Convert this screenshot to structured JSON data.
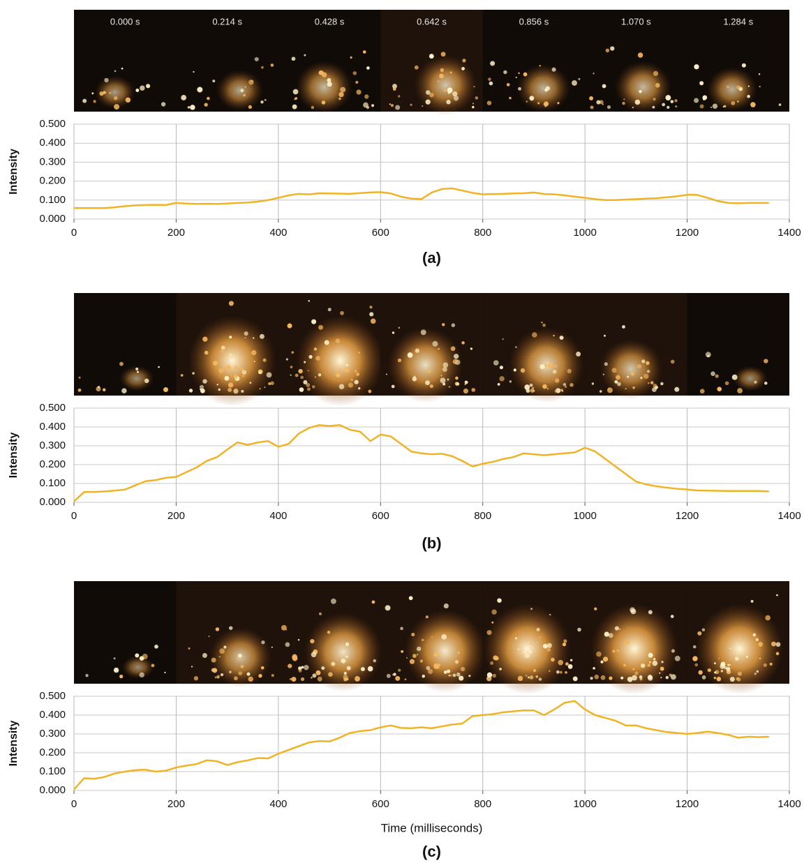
{
  "chart_data": [
    {
      "type": "line",
      "panel_label": "(a)",
      "ylabel": "Intensity",
      "frame_labels": [
        "0.000 s",
        "0.214 s",
        "0.428 s",
        "0.642 s",
        "0.856 s",
        "1.070 s",
        "1.284 s"
      ],
      "xlim": [
        0,
        1400
      ],
      "xticks": [
        0,
        200,
        400,
        600,
        800,
        1000,
        1200,
        1400
      ],
      "ylim": [
        0,
        0.5
      ],
      "yticks": [
        {
          "value": 0,
          "label": "0.000"
        },
        {
          "value": 0.1,
          "label": "0.100"
        },
        {
          "value": 0.2,
          "label": "0.200"
        },
        {
          "value": 0.3,
          "label": "0.300"
        },
        {
          "value": 0.4,
          "label": "0.400"
        },
        {
          "value": 0.5,
          "label": "0.500"
        }
      ],
      "grid": true,
      "x": [
        0,
        20,
        40,
        60,
        80,
        100,
        120,
        140,
        160,
        180,
        200,
        220,
        240,
        260,
        280,
        300,
        320,
        340,
        360,
        380,
        400,
        420,
        440,
        460,
        480,
        500,
        520,
        540,
        560,
        580,
        600,
        620,
        640,
        660,
        680,
        700,
        720,
        740,
        760,
        780,
        800,
        820,
        840,
        860,
        880,
        900,
        920,
        940,
        960,
        980,
        1000,
        1020,
        1040,
        1060,
        1080,
        1100,
        1120,
        1140,
        1160,
        1180,
        1200,
        1220,
        1240,
        1260,
        1280,
        1300,
        1320,
        1340,
        1360
      ],
      "series": [
        {
          "color": "#f0b323",
          "values": [
            0.058,
            0.058,
            0.058,
            0.058,
            0.062,
            0.068,
            0.072,
            0.074,
            0.075,
            0.074,
            0.085,
            0.082,
            0.08,
            0.081,
            0.08,
            0.082,
            0.085,
            0.087,
            0.092,
            0.1,
            0.112,
            0.125,
            0.133,
            0.13,
            0.136,
            0.135,
            0.134,
            0.133,
            0.137,
            0.14,
            0.142,
            0.135,
            0.118,
            0.108,
            0.105,
            0.14,
            0.158,
            0.162,
            0.15,
            0.138,
            0.13,
            0.132,
            0.133,
            0.135,
            0.136,
            0.14,
            0.132,
            0.13,
            0.125,
            0.118,
            0.112,
            0.105,
            0.1,
            0.1,
            0.103,
            0.105,
            0.108,
            0.11,
            0.115,
            0.12,
            0.128,
            0.127,
            0.112,
            0.095,
            0.085,
            0.083,
            0.085,
            0.085,
            0.085
          ]
        }
      ]
    },
    {
      "type": "line",
      "panel_label": "(b)",
      "ylabel": "Intensity",
      "xlim": [
        0,
        1400
      ],
      "xticks": [
        0,
        200,
        400,
        600,
        800,
        1000,
        1200,
        1400
      ],
      "ylim": [
        0,
        0.5
      ],
      "yticks": [
        {
          "value": 0,
          "label": "0.000"
        },
        {
          "value": 0.1,
          "label": "0.100"
        },
        {
          "value": 0.2,
          "label": "0.200"
        },
        {
          "value": 0.3,
          "label": "0.300"
        },
        {
          "value": 0.4,
          "label": "0.400"
        },
        {
          "value": 0.5,
          "label": "0.500"
        }
      ],
      "grid": true,
      "x": [
        0,
        20,
        40,
        60,
        80,
        100,
        120,
        140,
        160,
        180,
        200,
        220,
        240,
        260,
        280,
        300,
        320,
        340,
        360,
        380,
        400,
        420,
        440,
        460,
        480,
        500,
        520,
        540,
        560,
        580,
        600,
        620,
        640,
        660,
        680,
        700,
        720,
        740,
        760,
        780,
        800,
        820,
        840,
        860,
        880,
        900,
        920,
        940,
        960,
        980,
        1000,
        1020,
        1040,
        1060,
        1080,
        1100,
        1120,
        1140,
        1160,
        1180,
        1200,
        1220,
        1240,
        1260,
        1280,
        1300,
        1320,
        1340,
        1360
      ],
      "series": [
        {
          "color": "#f0b323",
          "values": [
            0.005,
            0.055,
            0.055,
            0.058,
            0.062,
            0.068,
            0.09,
            0.112,
            0.118,
            0.13,
            0.135,
            0.16,
            0.185,
            0.22,
            0.24,
            0.28,
            0.318,
            0.305,
            0.318,
            0.325,
            0.295,
            0.31,
            0.365,
            0.395,
            0.41,
            0.405,
            0.41,
            0.385,
            0.375,
            0.325,
            0.36,
            0.35,
            0.31,
            0.27,
            0.26,
            0.255,
            0.258,
            0.245,
            0.22,
            0.19,
            0.205,
            0.215,
            0.23,
            0.24,
            0.26,
            0.255,
            0.25,
            0.255,
            0.26,
            0.265,
            0.29,
            0.27,
            0.23,
            0.19,
            0.15,
            0.11,
            0.095,
            0.085,
            0.078,
            0.072,
            0.068,
            0.063,
            0.062,
            0.061,
            0.06,
            0.06,
            0.06,
            0.06,
            0.058
          ]
        }
      ]
    },
    {
      "type": "line",
      "panel_label": "(c)",
      "ylabel": "Intensity",
      "xlabel": "Time (milliseconds)",
      "xlim": [
        0,
        1400
      ],
      "xticks": [
        0,
        200,
        400,
        600,
        800,
        1000,
        1200,
        1400
      ],
      "ylim": [
        0,
        0.5
      ],
      "yticks": [
        {
          "value": 0,
          "label": "0.000"
        },
        {
          "value": 0.1,
          "label": "0.100"
        },
        {
          "value": 0.2,
          "label": "0.200"
        },
        {
          "value": 0.3,
          "label": "0.300"
        },
        {
          "value": 0.4,
          "label": "0.400"
        },
        {
          "value": 0.5,
          "label": "0.500"
        }
      ],
      "grid": true,
      "x": [
        0,
        20,
        40,
        60,
        80,
        100,
        120,
        140,
        160,
        180,
        200,
        220,
        240,
        260,
        280,
        300,
        320,
        340,
        360,
        380,
        400,
        420,
        440,
        460,
        480,
        500,
        520,
        540,
        560,
        580,
        600,
        620,
        640,
        660,
        680,
        700,
        720,
        740,
        760,
        780,
        800,
        820,
        840,
        860,
        880,
        900,
        920,
        940,
        960,
        980,
        1000,
        1020,
        1040,
        1060,
        1080,
        1100,
        1120,
        1140,
        1160,
        1180,
        1200,
        1220,
        1240,
        1260,
        1280,
        1300,
        1320,
        1340,
        1360
      ],
      "series": [
        {
          "color": "#f0b323",
          "values": [
            0.005,
            0.065,
            0.062,
            0.072,
            0.09,
            0.1,
            0.108,
            0.11,
            0.1,
            0.105,
            0.122,
            0.132,
            0.14,
            0.16,
            0.155,
            0.135,
            0.15,
            0.16,
            0.172,
            0.17,
            0.195,
            0.215,
            0.235,
            0.255,
            0.262,
            0.26,
            0.28,
            0.305,
            0.315,
            0.32,
            0.335,
            0.345,
            0.332,
            0.33,
            0.335,
            0.33,
            0.34,
            0.35,
            0.355,
            0.395,
            0.4,
            0.405,
            0.415,
            0.42,
            0.425,
            0.425,
            0.4,
            0.43,
            0.465,
            0.475,
            0.43,
            0.4,
            0.385,
            0.37,
            0.345,
            0.345,
            0.33,
            0.32,
            0.31,
            0.305,
            0.3,
            0.305,
            0.312,
            0.305,
            0.295,
            0.28,
            0.285,
            0.283,
            0.285
          ]
        }
      ]
    }
  ]
}
